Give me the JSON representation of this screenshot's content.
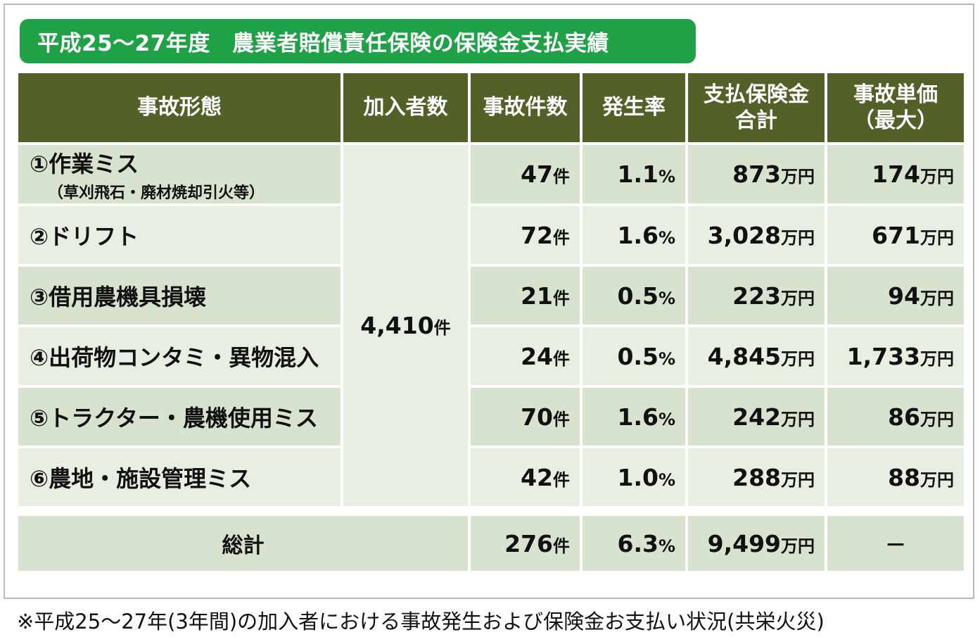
{
  "title": "平成25～27年度　農業者賠償責任保険の保険金支払実績",
  "headers": {
    "type": "事故形態",
    "members": "加入者数",
    "accidents": "事故件数",
    "rate": "発生率",
    "payout_line1": "支払保険金",
    "payout_line2": "合計",
    "unit_price_line1": "事故単価",
    "unit_price_line2": "（最大）"
  },
  "members_total": "4,410",
  "unit_ken": "件",
  "unit_man_yen": "万円",
  "unit_percent": "%",
  "rows": [
    {
      "label": "①作業ミス",
      "sub": "（草刈飛石・廃材焼却引火等）",
      "accidents": "47",
      "rate": "1.1",
      "payout": "873",
      "unit_price": "174"
    },
    {
      "label": "②ドリフト",
      "sub": "",
      "accidents": "72",
      "rate": "1.6",
      "payout": "3,028",
      "unit_price": "671"
    },
    {
      "label": "③借用農機具損壊",
      "sub": "",
      "accidents": "21",
      "rate": "0.5",
      "payout": "223",
      "unit_price": "94"
    },
    {
      "label": "④出荷物コンタミ・異物混入",
      "sub": "",
      "accidents": "24",
      "rate": "0.5",
      "payout": "4,845",
      "unit_price": "1,733"
    },
    {
      "label": "⑤トラクター・農機使用ミス",
      "sub": "",
      "accidents": "70",
      "rate": "1.6",
      "payout": "242",
      "unit_price": "86"
    },
    {
      "label": "⑥農地・施設管理ミス",
      "sub": "",
      "accidents": "42",
      "rate": "1.0",
      "payout": "288",
      "unit_price": "88"
    }
  ],
  "total": {
    "label": "総計",
    "accidents": "276",
    "rate": "6.3",
    "payout": "9,499",
    "unit_price": "－"
  },
  "footnote": "※平成25～27年(3年間)の加入者における事故発生および保険金お支払い状況(共栄火災)"
}
